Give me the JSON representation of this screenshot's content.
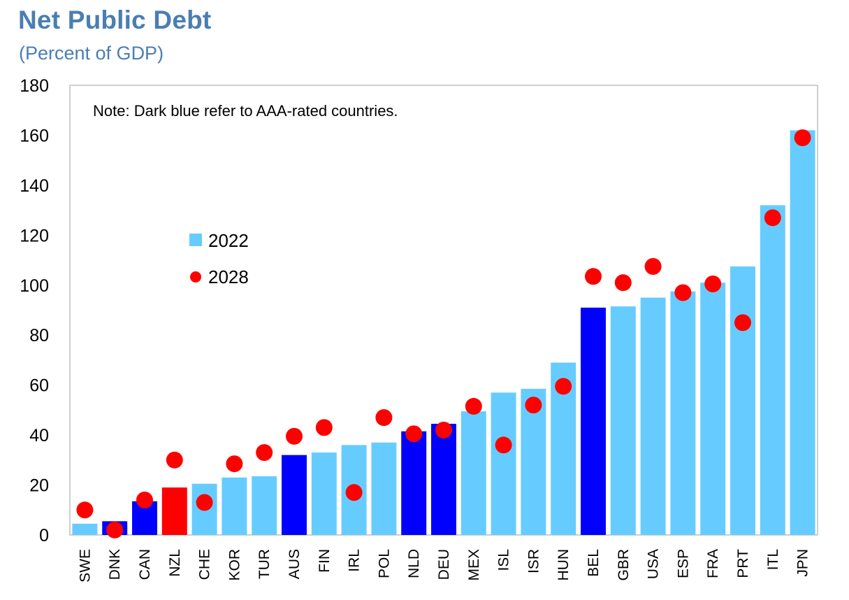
{
  "chart_data": {
    "type": "bar",
    "title": "Net Public Debt",
    "subtitle": "(Percent of GDP)",
    "note": "Note: Dark blue refer to AAA-rated countries.",
    "xlabel": "",
    "ylabel": "",
    "ylim": [
      0,
      180
    ],
    "yticks": [
      "0",
      "20",
      "40",
      "60",
      "80",
      "100",
      "120",
      "140",
      "160",
      "180"
    ],
    "ytick_values": [
      0,
      20,
      40,
      60,
      80,
      100,
      120,
      140,
      160,
      180
    ],
    "grid": false,
    "legend_position": "upper-left",
    "categories": [
      "SWE",
      "DNK",
      "CAN",
      "NZL",
      "CHE",
      "KOR",
      "TUR",
      "AUS",
      "FIN",
      "IRL",
      "POL",
      "NLD",
      "DEU",
      "MEX",
      "ISL",
      "ISR",
      "HUN",
      "BEL",
      "GBR",
      "USA",
      "ESP",
      "FRA",
      "PRT",
      "ITL",
      "JPN"
    ],
    "series": [
      {
        "name": "2022",
        "kind": "bar",
        "values": [
          4.5,
          5.5,
          13.5,
          19,
          20.5,
          23,
          23.5,
          32,
          33,
          36,
          37,
          41.5,
          44.5,
          49.5,
          57,
          58.5,
          69,
          91,
          91.5,
          95,
          97.5,
          101,
          107.5,
          132,
          162
        ]
      },
      {
        "name": "2028",
        "kind": "dot",
        "values": [
          10,
          2,
          14,
          30,
          13,
          28.5,
          33,
          39.5,
          43,
          17,
          47,
          40.5,
          42,
          51.5,
          36,
          52,
          59.5,
          103.5,
          101,
          107.5,
          97,
          100.5,
          85,
          127,
          159
        ]
      }
    ],
    "bar_colors": [
      "#66ccff",
      "#0000ff",
      "#0000ff",
      "#ff0000",
      "#66ccff",
      "#66ccff",
      "#66ccff",
      "#0000ff",
      "#66ccff",
      "#66ccff",
      "#66ccff",
      "#0000ff",
      "#0000ff",
      "#66ccff",
      "#66ccff",
      "#66ccff",
      "#66ccff",
      "#0000ff",
      "#66ccff",
      "#66ccff",
      "#66ccff",
      "#66ccff",
      "#66ccff",
      "#66ccff",
      "#66ccff"
    ],
    "colors": {
      "light_blue": "#66ccff",
      "aaa_dark_blue": "#0000ff",
      "highlight_red": "#ff0000",
      "dot_red": "#ff0000",
      "title_blue": "#4a7eb2",
      "axis": "#bfbfbf"
    }
  }
}
